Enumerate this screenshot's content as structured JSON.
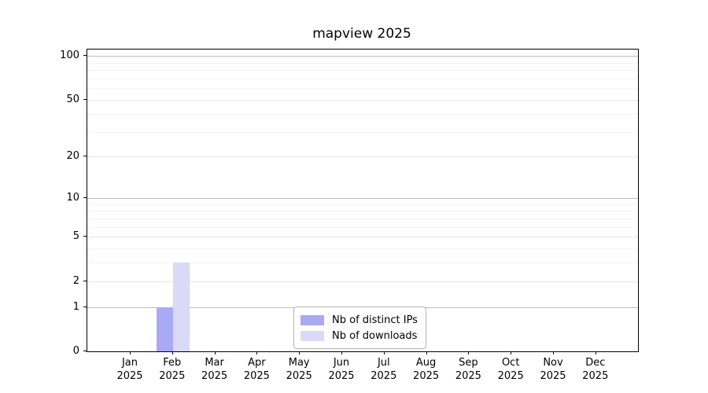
{
  "title": "mapview 2025",
  "chart_data": {
    "type": "bar",
    "title": "mapview 2025",
    "categories": [
      "Jan 2025",
      "Feb 2025",
      "Mar 2025",
      "Apr 2025",
      "May 2025",
      "Jun 2025",
      "Jul 2025",
      "Aug 2025",
      "Sep 2025",
      "Oct 2025",
      "Nov 2025",
      "Dec 2025"
    ],
    "x_tick_month_labels": [
      "Jan",
      "Feb",
      "Mar",
      "Apr",
      "May",
      "Jun",
      "Jul",
      "Aug",
      "Sep",
      "Oct",
      "Nov",
      "Dec"
    ],
    "x_tick_year_label": "2025",
    "series": [
      {
        "name": "Nb of distinct IPs",
        "color": "#a9a9f6",
        "values": [
          0,
          1,
          0,
          0,
          0,
          0,
          0,
          0,
          0,
          0,
          0,
          0
        ]
      },
      {
        "name": "Nb of downloads",
        "color": "#d9d9f8",
        "values": [
          0,
          3,
          0,
          0,
          0,
          0,
          0,
          0,
          0,
          0,
          0,
          0
        ]
      }
    ],
    "xlabel": "",
    "ylabel": "",
    "y_scale": "log1p",
    "y_ticks": [
      0,
      1,
      2,
      5,
      10,
      20,
      50,
      100
    ],
    "y_minor_gridlines": [
      3,
      4,
      6,
      7,
      8,
      9,
      30,
      40,
      60,
      70,
      80,
      90
    ],
    "y_decade_gridlines": [
      1,
      10,
      100
    ],
    "ylim": [
      0,
      111
    ],
    "grid": true,
    "legend_position": "lower center",
    "frame_color": "#000000",
    "background_color": "#ffffff"
  },
  "legend": {
    "item1": "Nb of distinct IPs",
    "item2": "Nb of downloads"
  }
}
